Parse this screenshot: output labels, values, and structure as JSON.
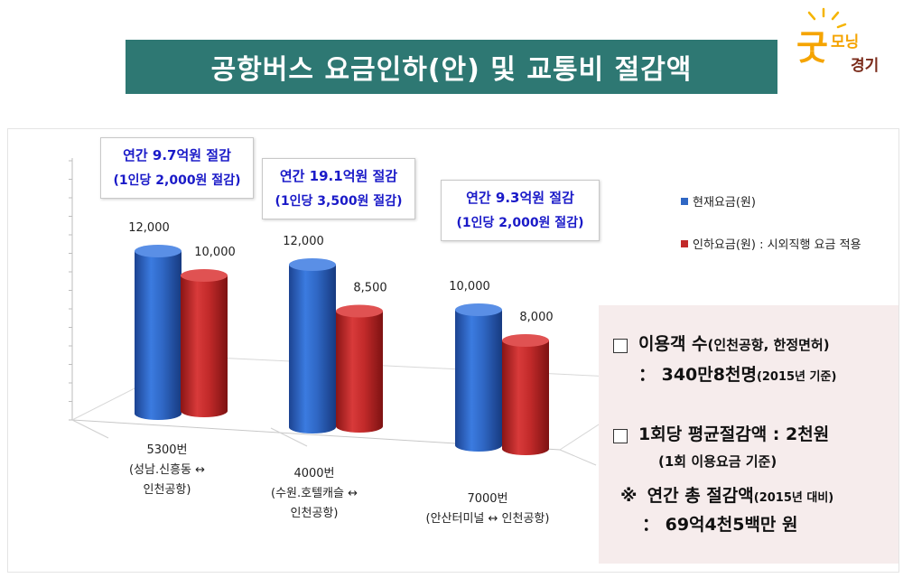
{
  "header": {
    "title": "공항버스 요금인하(안) 및 교통비 절감액",
    "logo_text": "굿모닝 경기"
  },
  "colors": {
    "title_bg": "#2e7873",
    "current": "#2f67c4",
    "reduced": "#c22a2a",
    "callout_text": "#1a1ac8",
    "info_bg": "#f6ecec"
  },
  "chart_data": {
    "type": "bar",
    "categories": [
      "5300번 (성남.신흥동 ↔ 인천공항)",
      "4000번 (수원.호텔캐슬 ↔ 인천공항)",
      "7000번 (안산터미널 ↔ 인천공항)"
    ],
    "series": [
      {
        "name": "현재요금(원)",
        "values": [
          12000,
          12000,
          10000
        ]
      },
      {
        "name": "인하요금(원) : 시외직행 요금 적용",
        "values": [
          10000,
          8500,
          8000
        ]
      }
    ],
    "ylim": [
      0,
      14000
    ],
    "grid": false,
    "legend": "right"
  },
  "bar_labels": [
    "12,000",
    "10,000",
    "12,000",
    "8,500",
    "10,000",
    "8,000"
  ],
  "legend": {
    "current": "현재요금(원)",
    "reduced": "인하요금(원) : 시외직행 요금 적용"
  },
  "callouts": [
    {
      "line1": "연간  9.7억원 절감",
      "line2": "(1인당 2,000원 절감)"
    },
    {
      "line1": "연간 19.1억원 절감",
      "line2": "(1인당 3,500원 절감)"
    },
    {
      "line1": "연간 9.3억원 절감",
      "line2": "(1인당 2,000원 절감)"
    }
  ],
  "xlabels": [
    {
      "l1": "5300번",
      "l2": "(성남.신흥동 ↔",
      "l3": "인천공항)"
    },
    {
      "l1": "4000번",
      "l2": "(수원.호텔캐슬 ↔",
      "l3": "인천공항)"
    },
    {
      "l1": "7000번",
      "l2": "(안산터미널 ↔ 인천공항)"
    }
  ],
  "info": {
    "users_label": "이용객 수",
    "users_note": "(인천공항, 한정면허)",
    "users_value": "：  340만8천명",
    "users_basis": "(2015년 기준)",
    "avg_label": "1회당  평균절감액  :  2천원",
    "avg_basis": "(1회  이용요금  기준)",
    "total_mark": "※",
    "total_label": "연간  총  절감액",
    "total_basis": "(2015년 대비)",
    "total_value": "：  69억4천5백만  원"
  }
}
